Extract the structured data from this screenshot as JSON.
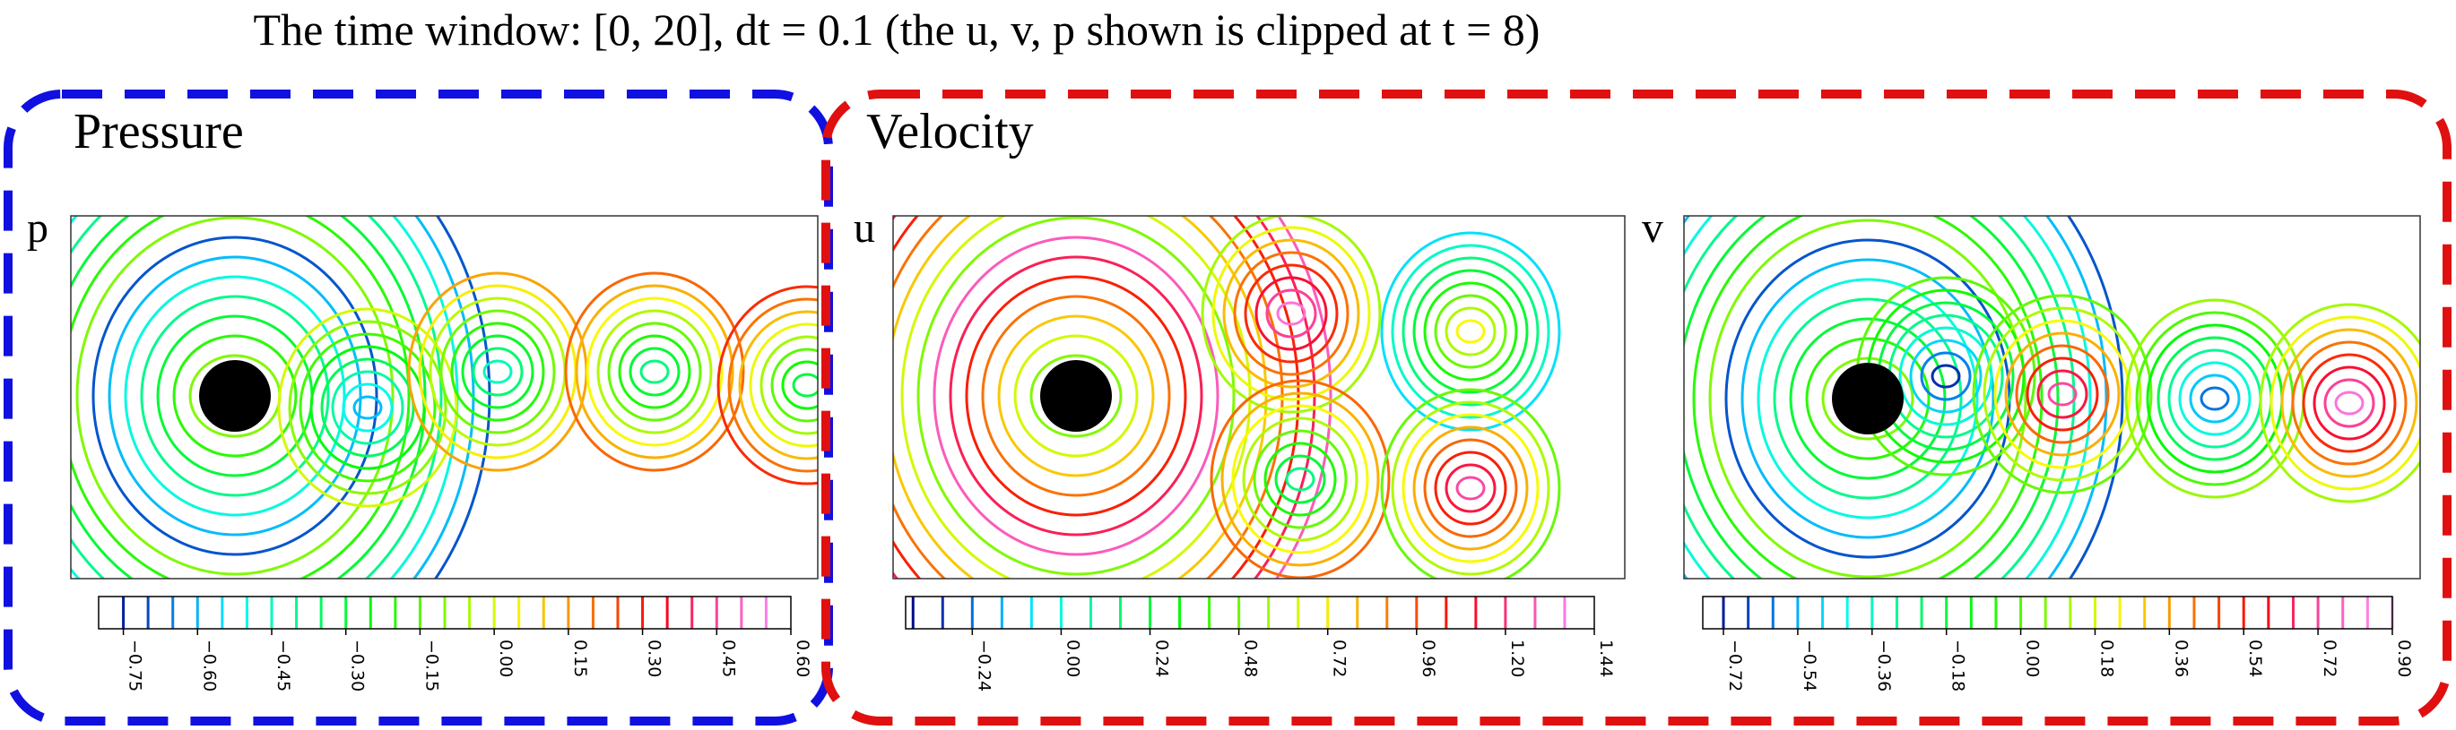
{
  "title": "The time window: [0, 20], dt = 0.1 (the u, v, p shown is clipped at t = 8)",
  "panels": [
    {
      "heading": "Pressure",
      "plots": [
        {
          "label": "p",
          "colorbar": {
            "lim": [
              -0.8,
              0.6
            ],
            "ticks": [
              {
                "value": -0.75,
                "label": "−0.75"
              },
              {
                "value": -0.6,
                "label": "−0.60"
              },
              {
                "value": -0.45,
                "label": "−0.45"
              },
              {
                "value": -0.3,
                "label": "−0.30"
              },
              {
                "value": -0.15,
                "label": "−0.15"
              },
              {
                "value": 0,
                "label": "0.00"
              },
              {
                "value": 0.15,
                "label": "0.15"
              },
              {
                "value": 0.3,
                "label": "0.30"
              },
              {
                "value": 0.45,
                "label": "0.45"
              },
              {
                "value": 0.6,
                "label": "0.60"
              }
            ]
          }
        }
      ]
    },
    {
      "heading": "Velocity",
      "plots": [
        {
          "label": "u",
          "colorbar": {
            "lim": [
              -0.42,
              1.44
            ],
            "ticks": [
              {
                "value": -0.24,
                "label": "−0.24"
              },
              {
                "value": 0,
                "label": "0.00"
              },
              {
                "value": 0.24,
                "label": "0.24"
              },
              {
                "value": 0.48,
                "label": "0.48"
              },
              {
                "value": 0.72,
                "label": "0.72"
              },
              {
                "value": 0.96,
                "label": "0.96"
              },
              {
                "value": 1.2,
                "label": "1.20"
              },
              {
                "value": 1.44,
                "label": "1.44"
              }
            ]
          }
        },
        {
          "label": "v",
          "colorbar": {
            "lim": [
              -0.77,
              0.9
            ],
            "ticks": [
              {
                "value": -0.72,
                "label": "−0.72"
              },
              {
                "value": -0.54,
                "label": "−0.54"
              },
              {
                "value": -0.36,
                "label": "−0.36"
              },
              {
                "value": -0.18,
                "label": "−0.18"
              },
              {
                "value": 0,
                "label": "0.00"
              },
              {
                "value": 0.18,
                "label": "0.18"
              },
              {
                "value": 0.36,
                "label": "0.36"
              },
              {
                "value": 0.54,
                "label": "0.54"
              },
              {
                "value": 0.72,
                "label": "0.72"
              },
              {
                "value": 0.9,
                "label": "0.90"
              }
            ]
          }
        }
      ]
    }
  ]
}
